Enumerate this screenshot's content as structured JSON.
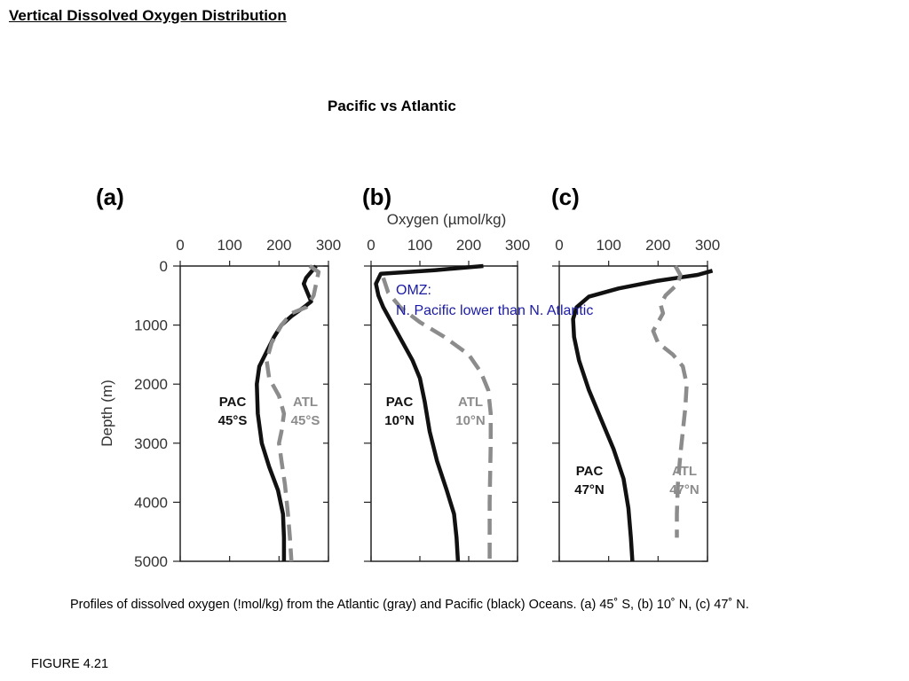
{
  "slide_title": "Vertical Dissolved Oxygen Distribution",
  "subtitle": "Pacific vs Atlantic",
  "caption": "Profiles of dissolved oxygen (!mol/kg) from the Atlantic (gray) and Pacific (black) Oceans. (a) 45˚ S, (b) 10˚ N, (c) 47˚ N.",
  "figure_label": "FIGURE 4.21",
  "annotation": {
    "line1": "OMZ:",
    "line2": "N. Pacific lower than N. Atlantic",
    "color": "#1a1aa6"
  },
  "colors": {
    "pacific": "#111111",
    "atlantic": "#8c8c8c"
  },
  "chart_data": [
    {
      "type": "line",
      "panel_label": "(a)",
      "xlabel": "",
      "ylabel": "Depth (m)",
      "xlim": [
        0,
        300
      ],
      "ylim": [
        0,
        5000
      ],
      "x_ticks": [
        "0",
        "100",
        "200",
        "300"
      ],
      "y_ticks": [
        "0",
        "1000",
        "2000",
        "3000",
        "4000",
        "5000"
      ],
      "y_inverted": true,
      "series": [
        {
          "name": "PAC 45°S",
          "label_lines": [
            "PAC",
            "45°S"
          ],
          "style": "solid",
          "points": [
            [
              275,
              0
            ],
            [
              265,
              100
            ],
            [
              255,
              200
            ],
            [
              250,
              300
            ],
            [
              260,
              500
            ],
            [
              265,
              600
            ],
            [
              250,
              700
            ],
            [
              225,
              850
            ],
            [
              205,
              1000
            ],
            [
              190,
              1200
            ],
            [
              175,
              1450
            ],
            [
              160,
              1700
            ],
            [
              155,
              2000
            ],
            [
              157,
              2500
            ],
            [
              165,
              3000
            ],
            [
              180,
              3400
            ],
            [
              198,
              3800
            ],
            [
              208,
              4200
            ],
            [
              210,
              4600
            ],
            [
              210,
              5000
            ]
          ]
        },
        {
          "name": "ATL 45°S",
          "label_lines": [
            "ATL",
            "45°S"
          ],
          "style": "dashed",
          "points": [
            [
              262,
              0
            ],
            [
              280,
              100
            ],
            [
              275,
              300
            ],
            [
              270,
              500
            ],
            [
              255,
              700
            ],
            [
              225,
              800
            ],
            [
              205,
              1000
            ],
            [
              185,
              1300
            ],
            [
              175,
              1600
            ],
            [
              180,
              1900
            ],
            [
              200,
              2200
            ],
            [
              210,
              2500
            ],
            [
              205,
              2800
            ],
            [
              200,
              3000
            ],
            [
              205,
              3300
            ],
            [
              212,
              3700
            ],
            [
              218,
              4200
            ],
            [
              222,
              4600
            ],
            [
              225,
              5000
            ]
          ]
        }
      ]
    },
    {
      "type": "line",
      "panel_label": "(b)",
      "xlabel": "Oxygen (µmol/kg)",
      "ylabel": "",
      "xlim": [
        0,
        300
      ],
      "ylim": [
        0,
        5000
      ],
      "x_ticks": [
        "0",
        "100",
        "200",
        "300"
      ],
      "y_ticks": [],
      "y_inverted": true,
      "series": [
        {
          "name": "PAC 10°N",
          "label_lines": [
            "PAC",
            "10°N"
          ],
          "style": "solid",
          "points": [
            [
              230,
              0
            ],
            [
              130,
              70
            ],
            [
              20,
              130
            ],
            [
              10,
              300
            ],
            [
              15,
              500
            ],
            [
              25,
              700
            ],
            [
              45,
              1000
            ],
            [
              65,
              1300
            ],
            [
              85,
              1600
            ],
            [
              100,
              1900
            ],
            [
              110,
              2300
            ],
            [
              120,
              2800
            ],
            [
              135,
              3300
            ],
            [
              155,
              3800
            ],
            [
              170,
              4200
            ],
            [
              175,
              4600
            ],
            [
              178,
              5000
            ]
          ]
        },
        {
          "name": "ATL 10°N",
          "label_lines": [
            "ATL",
            "10°N"
          ],
          "style": "dashed",
          "points": [
            [
              25,
              200
            ],
            [
              35,
              450
            ],
            [
              60,
              700
            ],
            [
              100,
              950
            ],
            [
              150,
              1200
            ],
            [
              200,
              1500
            ],
            [
              225,
              1800
            ],
            [
              240,
              2100
            ],
            [
              245,
              2500
            ],
            [
              245,
              3000
            ],
            [
              244,
              3500
            ],
            [
              243,
              4000
            ],
            [
              243,
              4500
            ],
            [
              243,
              5000
            ]
          ]
        }
      ]
    },
    {
      "type": "line",
      "panel_label": "(c)",
      "xlabel": "",
      "ylabel": "",
      "xlim": [
        0,
        300
      ],
      "ylim": [
        0,
        5000
      ],
      "x_ticks": [
        "0",
        "100",
        "200",
        "300"
      ],
      "y_ticks": [],
      "y_inverted": true,
      "series": [
        {
          "name": "PAC 47°N",
          "label_lines": [
            "PAC",
            "47°N"
          ],
          "style": "solid",
          "points": [
            [
              310,
              80
            ],
            [
              280,
              150
            ],
            [
              200,
              250
            ],
            [
              120,
              380
            ],
            [
              60,
              520
            ],
            [
              35,
              700
            ],
            [
              28,
              900
            ],
            [
              30,
              1200
            ],
            [
              40,
              1600
            ],
            [
              60,
              2100
            ],
            [
              85,
              2600
            ],
            [
              110,
              3100
            ],
            [
              130,
              3600
            ],
            [
              140,
              4100
            ],
            [
              145,
              4600
            ],
            [
              148,
              5000
            ]
          ]
        },
        {
          "name": "ATL 47°N",
          "label_lines": [
            "ATL",
            "47°N"
          ],
          "style": "dashed",
          "points": [
            [
              235,
              0
            ],
            [
              245,
              150
            ],
            [
              240,
              300
            ],
            [
              215,
              500
            ],
            [
              205,
              650
            ],
            [
              210,
              800
            ],
            [
              190,
              1100
            ],
            [
              200,
              1300
            ],
            [
              230,
              1500
            ],
            [
              250,
              1700
            ],
            [
              258,
              2000
            ],
            [
              255,
              2400
            ],
            [
              250,
              2800
            ],
            [
              245,
              3200
            ],
            [
              240,
              3700
            ],
            [
              238,
              4200
            ],
            [
              238,
              4600
            ]
          ]
        }
      ]
    }
  ]
}
